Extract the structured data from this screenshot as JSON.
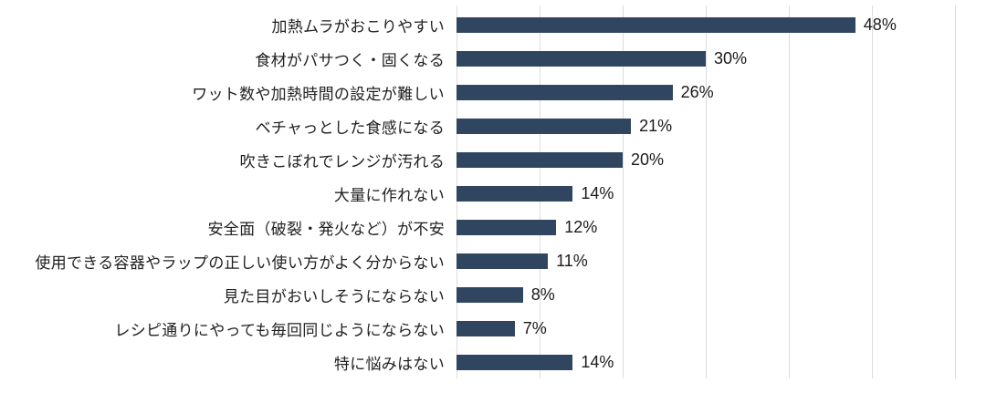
{
  "chart_data": {
    "type": "bar",
    "orientation": "horizontal",
    "title": "",
    "xlabel": "",
    "ylabel": "",
    "xlim": [
      0,
      60
    ],
    "gridline_interval": 10,
    "grid": true,
    "legend": false,
    "categories": [
      "加熱ムラがおこりやすい",
      "食材がパサつく・固くなる",
      "ワット数や加熱時間の設定が難しい",
      "ベチャっとした食感になる",
      "吹きこぼれでレンジが汚れる",
      "大量に作れない",
      "安全面（破裂・発火など）が不安",
      "使用できる容器やラップの正しい使い方がよく分からない",
      "見た目がおいしそうにならない",
      "レシピ通りにやっても毎回同じようにならない",
      "特に悩みはない"
    ],
    "values": [
      48,
      30,
      26,
      21,
      20,
      14,
      12,
      11,
      8,
      7,
      14
    ],
    "value_labels": [
      "48%",
      "30%",
      "26%",
      "21%",
      "20%",
      "14%",
      "12%",
      "11%",
      "8%",
      "7%",
      "14%"
    ],
    "colors": {
      "bar": "#304660",
      "gridline": "#dcdcdc",
      "text": "#212121",
      "background": "#ffffff"
    }
  }
}
